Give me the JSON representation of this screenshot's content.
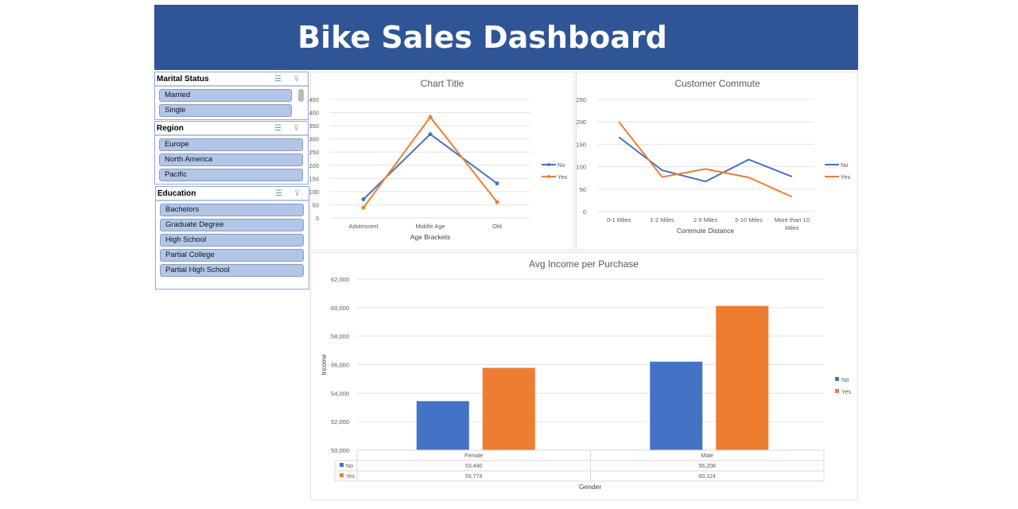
{
  "header": {
    "title": "Bike Sales Dashboard"
  },
  "slicers": [
    {
      "title": "Marital Status",
      "items": [
        "Married",
        "Single"
      ]
    },
    {
      "title": "Region",
      "items": [
        "Europe",
        "North America",
        "Pacific"
      ]
    },
    {
      "title": "Education",
      "items": [
        "Bachelors",
        "Graduate Degree",
        "High School",
        "Partial College",
        "Partial High School"
      ]
    }
  ],
  "colors": {
    "No": "#4472c4",
    "Yes": "#ed7d31",
    "header": "#2f5597"
  },
  "chart_data": [
    {
      "type": "line",
      "title": "Chart Title",
      "xlabel": "Age Brackets",
      "ylabel": "",
      "categories": [
        "Adolescent",
        "Middle Age",
        "Old"
      ],
      "ylim": [
        0,
        450
      ],
      "yticks": [
        0,
        50,
        100,
        150,
        200,
        250,
        300,
        350,
        400,
        450
      ],
      "grid": true,
      "legend": "right",
      "markers": true,
      "series": [
        {
          "name": "No",
          "values": [
            71,
            318,
            131
          ]
        },
        {
          "name": "Yes",
          "values": [
            39,
            383,
            60
          ]
        }
      ]
    },
    {
      "type": "line",
      "title": "Customer Commute",
      "xlabel": "Commute Distance",
      "ylabel": "",
      "categories": [
        "0-1 Miles",
        "1-2 Miles",
        "2-5 Miles",
        "5-10 Miles",
        "More than 10 Miles"
      ],
      "ylim": [
        0,
        250
      ],
      "yticks": [
        0,
        50,
        100,
        150,
        200,
        250
      ],
      "grid": true,
      "legend": "right",
      "markers": false,
      "series": [
        {
          "name": "No",
          "values": [
            166,
            92,
            67,
            116,
            78
          ]
        },
        {
          "name": "Yes",
          "values": [
            200,
            77,
            95,
            76,
            33
          ]
        }
      ]
    },
    {
      "type": "bar",
      "title": "Avg Income per Purchase",
      "xlabel": "Gender",
      "ylabel": "Income",
      "categories": [
        "Female",
        "Male"
      ],
      "ylim": [
        50000,
        62000
      ],
      "yticks": [
        "50,000",
        "52,000",
        "54,000",
        "56,000",
        "58,000",
        "60,000",
        "62,000"
      ],
      "grid": true,
      "legend": "right",
      "data_table": true,
      "series": [
        {
          "name": "No",
          "values": [
            53440,
            56208
          ],
          "labels": [
            "53,440",
            "56,208"
          ]
        },
        {
          "name": "Yes",
          "values": [
            55774,
            60124
          ],
          "labels": [
            "55,774",
            "60,124"
          ]
        }
      ]
    }
  ]
}
